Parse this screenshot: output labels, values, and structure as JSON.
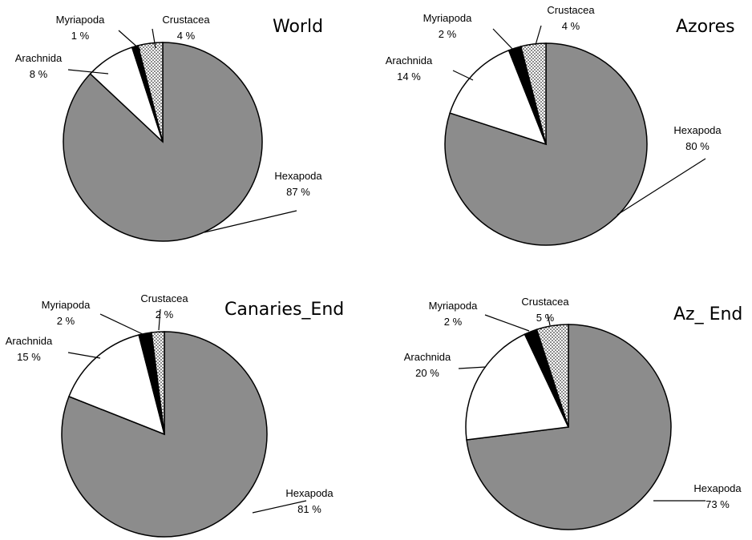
{
  "chart_data": [
    {
      "type": "pie",
      "title": "World",
      "slices": [
        {
          "name": "Hexapoda",
          "value": 87,
          "value_label": "87 %"
        },
        {
          "name": "Arachnida",
          "value": 8,
          "value_label": "8 %"
        },
        {
          "name": "Myriapoda",
          "value": 1,
          "value_label": "1 %"
        },
        {
          "name": "Crustacea",
          "value": 4,
          "value_label": "4 %"
        }
      ]
    },
    {
      "type": "pie",
      "title": "Azores",
      "slices": [
        {
          "name": "Hexapoda",
          "value": 80,
          "value_label": "80 %"
        },
        {
          "name": "Arachnida",
          "value": 14,
          "value_label": "14 %"
        },
        {
          "name": "Myriapoda",
          "value": 2,
          "value_label": "2 %"
        },
        {
          "name": "Crustacea",
          "value": 4,
          "value_label": "4 %"
        }
      ]
    },
    {
      "type": "pie",
      "title": "Canaries_End",
      "slices": [
        {
          "name": "Hexapoda",
          "value": 81,
          "value_label": "81 %"
        },
        {
          "name": "Arachnida",
          "value": 15,
          "value_label": "15 %"
        },
        {
          "name": "Myriapoda",
          "value": 2,
          "value_label": "2 %"
        },
        {
          "name": "Crustacea",
          "value": 2,
          "value_label": "2 %"
        }
      ]
    },
    {
      "type": "pie",
      "title": "Az_ End",
      "slices": [
        {
          "name": "Hexapoda",
          "value": 73,
          "value_label": "73 %"
        },
        {
          "name": "Arachnida",
          "value": 20,
          "value_label": "20 %"
        },
        {
          "name": "Myriapoda",
          "value": 2,
          "value_label": "2 %"
        },
        {
          "name": "Crustacea",
          "value": 5,
          "value_label": "5 %"
        }
      ]
    }
  ],
  "slice_styles": {
    "Hexapoda": {
      "fill": "#8c8c8c"
    },
    "Arachnida": {
      "fill": "#ffffff"
    },
    "Myriapoda": {
      "fill": "#000000"
    },
    "Crustacea": {
      "fill": "dotted"
    }
  }
}
